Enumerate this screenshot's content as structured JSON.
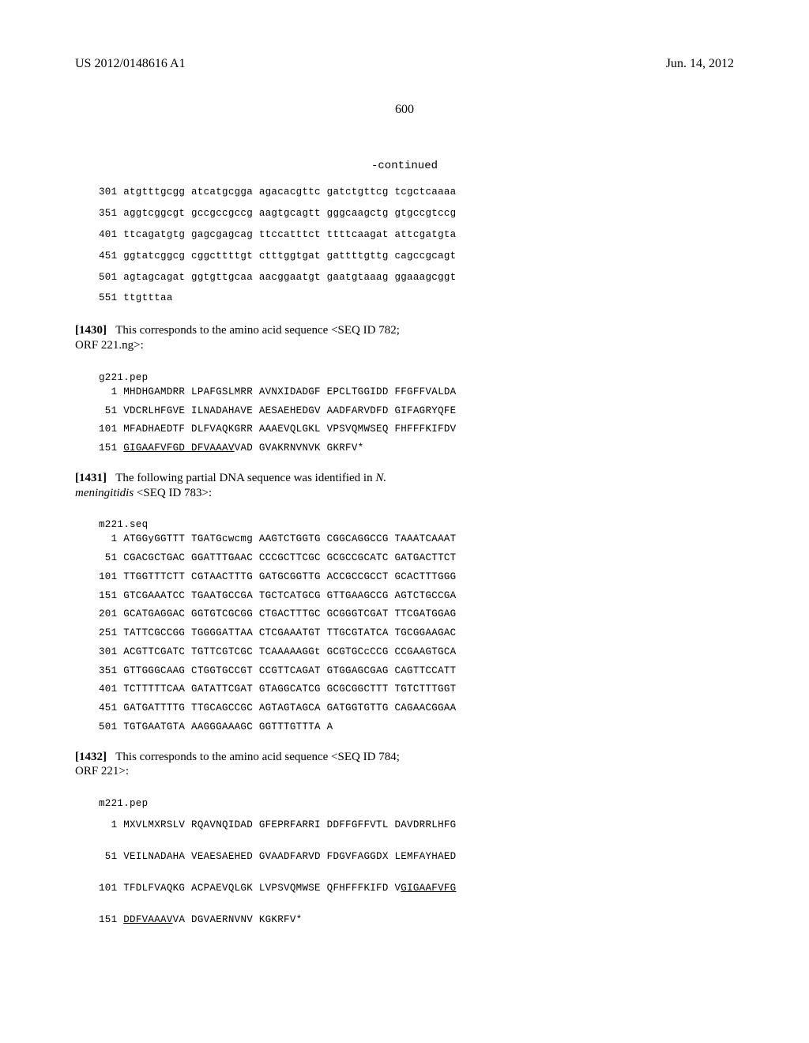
{
  "header": {
    "pub_number": "US 2012/0148616 A1",
    "date": "Jun. 14, 2012"
  },
  "page_number": "600",
  "continued_label": "-continued",
  "seq_block_1": {
    "lines": [
      {
        "num": "301",
        "t": "atgtttgcgg atcatgcgga agacacgttc gatctgttcg tcgctcaaaa"
      },
      {
        "num": "351",
        "t": "aggtcggcgt gccgccgccg aagtgcagtt gggcaagctg gtgccgtccg"
      },
      {
        "num": "401",
        "t": "ttcagatgtg gagcgagcag ttccatttct ttttcaagat attcgatgta"
      },
      {
        "num": "451",
        "t": "ggtatcggcg cggcttttgt ctttggtgat gattttgttg cagccgcagt"
      },
      {
        "num": "501",
        "t": "agtagcagat ggtgttgcaa aacggaatgt gaatgtaaag ggaaagcggt"
      },
      {
        "num": "551",
        "t": "ttgtttaa"
      }
    ]
  },
  "para_1430": {
    "ref": "[1430]",
    "text_a": "This corresponds to the amino acid sequence <SEQ ID 782; ORF 221.ng>:"
  },
  "g221_label": "g221.pep",
  "g221_block": {
    "lines": [
      {
        "num": "1",
        "t": "MHDHGAMDRR LPAFGSLMRR AVNXIDADGF EPCLTGGIDD FFGFFVALDA"
      },
      {
        "num": "51",
        "t": "VDCRLHFGVE ILNADAHAVE AESAEHEDGV AADFARVDFD GIFAGRYQFE"
      },
      {
        "num": "101",
        "t": "MFADHAEDTF DLFVAQKGRR AAAEVQLGKL VPSVQMWSEQ FHFFFKIFDV"
      },
      {
        "num": "151",
        "t_a": "GIGAAFVFGD DFVAAAV",
        "t_b": "VAD GVAKRNVNVK GKRFV*"
      }
    ]
  },
  "para_1431": {
    "ref": "[1431]",
    "text_a": "The following partial DNA sequence was identified in ",
    "ital": "N. meningitidis",
    "text_b": " <SEQ ID 783>:"
  },
  "m221_seq_label": "m221.seq",
  "m221_seq_block": {
    "lines": [
      {
        "num": "1",
        "t": "ATGGyGGTTT TGATGcwcmg AAGTCTGGTG CGGCAGGCCG TAAATCAAAT"
      },
      {
        "num": "51",
        "t": "CGACGCTGAC GGATTTGAAC CCCGCTTCGC GCGCCGCATC GATGACTTCT"
      },
      {
        "num": "101",
        "t": "TTGGTTTCTT CGTAACTTTG GATGCGGTTG ACCGCCGCCT GCACTTTGGG"
      },
      {
        "num": "151",
        "t": "GTCGAAATCC TGAATGCCGA TGCTCATGCG GTTGAAGCCG AGTCTGCCGA"
      },
      {
        "num": "201",
        "t": "GCATGAGGAC GGTGTCGCGG CTGACTTTGC GCGGGTCGAT TTCGATGGAG"
      },
      {
        "num": "251",
        "t": "TATTCGCCGG TGGGGATTAA CTCGAAATGT TTGCGTATCA TGCGGAAGAC"
      },
      {
        "num": "301",
        "t": "ACGTTCGATC TGTTCGTCGC TCAAAAAGGt GCGTGCcCCG CCGAAGTGCA"
      },
      {
        "num": "351",
        "t": "GTTGGGCAAG CTGGTGCCGT CCGTTCAGAT GTGGAGCGAG CAGTTCCATT"
      },
      {
        "num": "401",
        "t": "TCTTTTTCAA GATATTCGAT GTAGGCATCG GCGCGGCTTT TGTCTTTGGT"
      },
      {
        "num": "451",
        "t": "GATGATTTTG TTGCAGCCGC AGTAGTAGCA GATGGTGTTG CAGAACGGAA"
      },
      {
        "num": "501",
        "t": "TGTGAATGTA AAGGGAAAGC GGTTTGTTTA A"
      }
    ]
  },
  "para_1432": {
    "ref": "[1432]",
    "text_a": "This corresponds to the amino acid sequence <SEQ ID 784; ORF 221>:"
  },
  "m221_pep_label": "m221.pep",
  "m221_pep_block": {
    "lines": [
      {
        "num": "1",
        "t": "MXVLMXRSLV RQAVNQIDAD GFEPRFARRI DDFFGFFVTL DAVDRRLHFG"
      },
      {
        "num": "51",
        "t": "VEILNADAHA VEAESAEHED GVAADFARVD FDGVFAGGDX LEMFAYHAED"
      },
      {
        "num": "101",
        "t_a": "TFDLFVAQKG ACPAEVQLGK LVPSVQMWSE QFHFFFKIFD V",
        "t_u": "GIGAAFVFG"
      },
      {
        "num": "151",
        "t_u": "DDFVAAAV",
        "t_b": "VA DGVAERNVNV KGKRFV*"
      }
    ]
  }
}
